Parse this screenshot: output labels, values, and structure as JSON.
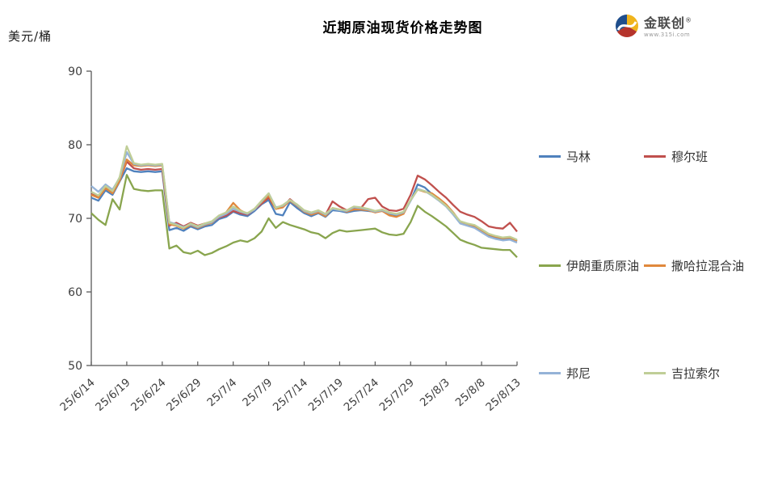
{
  "title": "近期原油现货价格走势图",
  "y_axis_unit": "美元/桶",
  "logo": {
    "text": "金联创",
    "reg": "®",
    "url": "www.315i.com"
  },
  "chart_data": {
    "type": "line",
    "title": "近期原油现货价格走势图",
    "ylabel": "美元/桶",
    "ylim": [
      50,
      90
    ],
    "y_ticks": [
      50,
      60,
      70,
      80,
      90
    ],
    "grid": false,
    "legend_position": "right",
    "axis_color": "#595959",
    "tick_label_color": "#3F3F3F",
    "x_tick_labels": [
      "25/6/14",
      "25/6/19",
      "25/6/24",
      "25/6/29",
      "25/7/4",
      "25/7/9",
      "25/7/14",
      "25/7/19",
      "25/7/24",
      "25/7/29",
      "25/8/3",
      "25/8/8",
      "25/8/13"
    ],
    "x": [
      "25/6/14",
      "25/6/15",
      "25/6/16",
      "25/6/17",
      "25/6/18",
      "25/6/19",
      "25/6/20",
      "25/6/21",
      "25/6/22",
      "25/6/23",
      "25/6/24",
      "25/6/25",
      "25/6/26",
      "25/6/27",
      "25/6/28",
      "25/6/29",
      "25/6/30",
      "25/7/1",
      "25/7/2",
      "25/7/3",
      "25/7/4",
      "25/7/5",
      "25/7/6",
      "25/7/7",
      "25/7/8",
      "25/7/9",
      "25/7/10",
      "25/7/11",
      "25/7/12",
      "25/7/13",
      "25/7/14",
      "25/7/15",
      "25/7/16",
      "25/7/17",
      "25/7/18",
      "25/7/19",
      "25/7/20",
      "25/7/21",
      "25/7/22",
      "25/7/23",
      "25/7/24",
      "25/7/25",
      "25/7/26",
      "25/7/27",
      "25/7/28",
      "25/7/29",
      "25/7/30",
      "25/7/31",
      "25/8/1",
      "25/8/2",
      "25/8/3",
      "25/8/4",
      "25/8/5",
      "25/8/6",
      "25/8/7",
      "25/8/8",
      "25/8/9",
      "25/8/10",
      "25/8/11",
      "25/8/12",
      "25/8/13"
    ],
    "series": [
      {
        "name": "马林",
        "color": "#4F81BD",
        "values": [
          72.8,
          72.4,
          73.8,
          73.2,
          75.0,
          76.8,
          76.4,
          76.3,
          76.4,
          76.3,
          76.4,
          68.4,
          68.7,
          68.3,
          68.9,
          68.5,
          68.9,
          69.1,
          69.9,
          70.2,
          70.9,
          70.5,
          70.3,
          71.0,
          71.9,
          72.5,
          70.6,
          70.4,
          72.2,
          71.4,
          70.7,
          70.3,
          70.7,
          70.2,
          71.1,
          71.0,
          70.8,
          71.0,
          71.1,
          71.0,
          70.9,
          71.0,
          70.6,
          70.4,
          70.7,
          72.4,
          74.6,
          74.2,
          73.3,
          72.5,
          71.8,
          70.6,
          69.4,
          69.1,
          68.9,
          68.2,
          67.6,
          67.4,
          67.2,
          67.3,
          67.0
        ]
      },
      {
        "name": "穆尔班",
        "color": "#C0504D",
        "values": [
          73.3,
          72.9,
          74.3,
          73.6,
          75.2,
          77.7,
          76.8,
          76.6,
          76.7,
          76.6,
          76.7,
          69.0,
          69.4,
          68.9,
          69.4,
          69.0,
          69.3,
          69.5,
          70.1,
          70.4,
          71.0,
          70.7,
          70.5,
          71.2,
          72.0,
          72.8,
          71.3,
          71.5,
          72.6,
          71.8,
          71.0,
          70.7,
          71.0,
          70.5,
          72.3,
          71.6,
          71.1,
          71.3,
          71.4,
          72.6,
          72.8,
          71.6,
          71.1,
          71.0,
          71.3,
          73.2,
          75.8,
          75.3,
          74.5,
          73.6,
          72.8,
          71.8,
          70.9,
          70.5,
          70.2,
          69.6,
          68.9,
          68.7,
          68.6,
          69.4,
          68.2
        ]
      },
      {
        "name": "伊朗重质原油",
        "color": "#89A54E",
        "values": [
          70.7,
          69.8,
          69.1,
          72.6,
          71.2,
          75.9,
          74.0,
          73.8,
          73.7,
          73.8,
          73.8,
          65.9,
          66.3,
          65.4,
          65.2,
          65.6,
          65.0,
          65.3,
          65.8,
          66.2,
          66.7,
          67.0,
          66.8,
          67.3,
          68.2,
          70.0,
          68.7,
          69.5,
          69.1,
          68.8,
          68.5,
          68.1,
          67.9,
          67.3,
          68.0,
          68.4,
          68.2,
          68.3,
          68.4,
          68.5,
          68.6,
          68.1,
          67.8,
          67.7,
          67.9,
          69.5,
          71.7,
          70.9,
          70.3,
          69.6,
          68.9,
          68.0,
          67.1,
          66.7,
          66.4,
          66.0,
          65.9,
          65.8,
          65.7,
          65.7,
          64.7
        ]
      },
      {
        "name": "撒哈拉混合油",
        "color": "#E0883C",
        "values": [
          73.2,
          72.8,
          74.1,
          73.4,
          75.1,
          78.0,
          77.2,
          77.1,
          77.2,
          77.1,
          77.2,
          69.2,
          69.0,
          68.6,
          69.1,
          68.7,
          69.1,
          69.4,
          70.3,
          70.8,
          72.1,
          71.1,
          70.6,
          71.3,
          72.2,
          73.1,
          71.3,
          71.5,
          72.4,
          71.7,
          70.9,
          70.5,
          70.8,
          70.3,
          71.4,
          71.2,
          70.9,
          71.2,
          71.2,
          71.1,
          70.8,
          71.0,
          70.4,
          70.2,
          70.6,
          72.5,
          73.9,
          73.6,
          73.4,
          72.7,
          71.9,
          70.8,
          69.5,
          69.2,
          69.0,
          68.4,
          67.8,
          67.5,
          67.3,
          67.4,
          66.9
        ]
      },
      {
        "name": "邦尼",
        "color": "#95B3D7",
        "values": [
          74.4,
          73.6,
          74.6,
          73.9,
          75.5,
          79.0,
          77.4,
          77.2,
          77.3,
          77.2,
          77.3,
          69.5,
          69.2,
          68.8,
          69.2,
          68.8,
          69.2,
          69.5,
          70.2,
          70.6,
          71.3,
          70.9,
          70.6,
          71.2,
          72.3,
          73.4,
          71.5,
          71.7,
          72.5,
          71.8,
          71.0,
          70.7,
          71.0,
          70.5,
          71.3,
          71.1,
          71.0,
          71.5,
          71.4,
          71.2,
          70.9,
          71.1,
          70.7,
          70.5,
          70.8,
          72.4,
          74.0,
          73.7,
          73.1,
          72.4,
          71.6,
          70.5,
          69.3,
          69.0,
          68.7,
          68.1,
          67.5,
          67.2,
          67.0,
          67.1,
          66.7
        ]
      },
      {
        "name": "吉拉索尔",
        "color": "#C0CE97",
        "values": [
          73.6,
          73.1,
          74.4,
          73.7,
          75.6,
          79.8,
          77.5,
          77.3,
          77.4,
          77.3,
          77.4,
          69.4,
          69.1,
          68.7,
          69.3,
          68.9,
          69.3,
          69.6,
          70.4,
          70.8,
          71.6,
          71.0,
          70.7,
          71.3,
          72.4,
          73.4,
          71.4,
          71.8,
          72.5,
          71.9,
          71.1,
          70.8,
          71.1,
          70.6,
          71.4,
          71.2,
          71.1,
          71.6,
          71.5,
          71.3,
          71.0,
          71.2,
          70.8,
          70.6,
          70.9,
          72.5,
          73.9,
          73.7,
          73.2,
          72.5,
          71.7,
          70.7,
          69.6,
          69.3,
          69.1,
          68.5,
          67.9,
          67.6,
          67.4,
          67.5,
          67.1
        ]
      }
    ]
  }
}
